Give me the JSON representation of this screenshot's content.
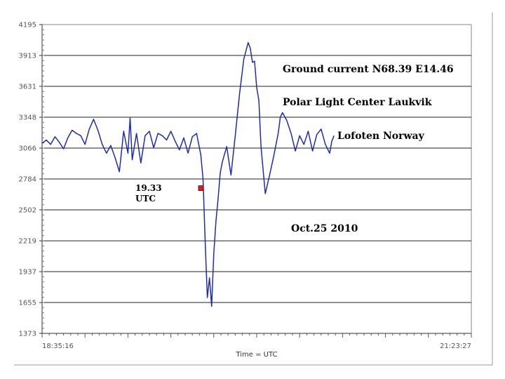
{
  "colors": {
    "line": "#1f2bb5",
    "grid": "#222222",
    "marker": "#d42020",
    "background": "#ffffff"
  },
  "chart_data": {
    "type": "line",
    "title": "",
    "xlabel": "Time = UTC",
    "ylabel": "",
    "x_start_label": "18:35:16",
    "x_end_label": "21:23:27",
    "y_ticks": [
      4195,
      3913,
      3631,
      3348,
      3066,
      2784,
      2502,
      2219,
      1937,
      1655,
      1373
    ],
    "ylim": [
      1373,
      4195
    ],
    "grid": true,
    "annotations": [
      {
        "text": "Ground current  N68.39 E14.46"
      },
      {
        "text": "Polar Light Center Laukvik"
      },
      {
        "text": "Lofoten Norway"
      },
      {
        "text": "Oct.25 2010"
      },
      {
        "text": "19.33"
      },
      {
        "text": "UTC"
      }
    ],
    "marker": {
      "x_fraction": 0.37,
      "y": 2700
    },
    "series": [
      {
        "x_fraction": [
          0.0,
          0.01,
          0.02,
          0.03,
          0.04,
          0.05,
          0.06,
          0.07,
          0.08,
          0.09,
          0.1,
          0.11,
          0.12,
          0.13,
          0.14,
          0.15,
          0.16,
          0.17,
          0.18,
          0.19,
          0.2,
          0.205,
          0.21,
          0.22,
          0.23,
          0.24,
          0.25,
          0.26,
          0.27,
          0.28,
          0.29,
          0.3,
          0.31,
          0.32,
          0.33,
          0.34,
          0.35,
          0.36,
          0.37,
          0.375,
          0.38,
          0.385,
          0.39,
          0.395,
          0.4,
          0.405,
          0.41,
          0.415,
          0.42,
          0.43,
          0.44,
          0.45,
          0.46,
          0.47,
          0.48,
          0.485,
          0.49,
          0.495,
          0.5,
          0.505,
          0.51,
          0.52,
          0.53,
          0.54,
          0.55,
          0.555,
          0.56,
          0.57,
          0.58,
          0.59,
          0.6,
          0.61,
          0.62,
          0.63,
          0.64,
          0.65,
          0.66,
          0.67,
          0.675,
          0.68
        ],
        "values": [
          3110,
          3140,
          3100,
          3170,
          3120,
          3060,
          3160,
          3230,
          3200,
          3180,
          3100,
          3240,
          3330,
          3230,
          3100,
          3020,
          3090,
          2980,
          2850,
          3220,
          3020,
          3340,
          2960,
          3200,
          2930,
          3180,
          3220,
          3070,
          3200,
          3180,
          3140,
          3220,
          3130,
          3050,
          3160,
          3020,
          3170,
          3200,
          3000,
          2780,
          2200,
          1700,
          1880,
          1620,
          2100,
          2400,
          2600,
          2840,
          2940,
          3080,
          2820,
          3180,
          3560,
          3880,
          4030,
          3980,
          3850,
          3860,
          3620,
          3500,
          3080,
          2650,
          2820,
          3000,
          3200,
          3350,
          3390,
          3320,
          3200,
          3040,
          3180,
          3100,
          3220,
          3040,
          3190,
          3240,
          3100,
          3020,
          3130,
          3180
        ]
      }
    ]
  }
}
